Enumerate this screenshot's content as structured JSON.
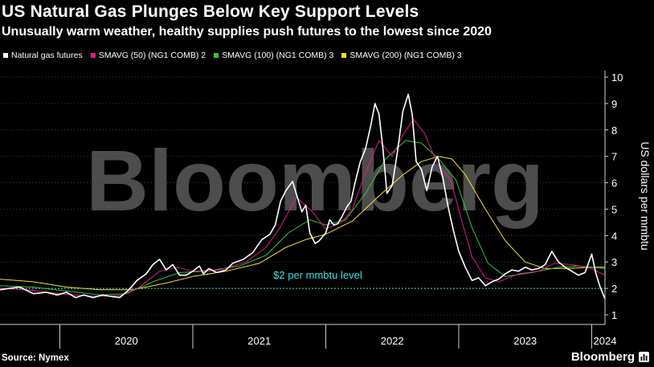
{
  "title": "US Natural Gas Plunges Below Key Support Levels",
  "subtitle": "Unusually warm weather, healthy supplies push futures to the lowest since 2020",
  "legend": [
    {
      "label": "Natural gas futures",
      "color": "#ffffff"
    },
    {
      "label": "SMAVG (50) (NG1 COMB) 2",
      "color": "#e8178a"
    },
    {
      "label": "SMAVG (100) (NG1 COMB) 3",
      "color": "#2fc63a"
    },
    {
      "label": "SMAVG (200) (NG1 COMB) 3",
      "color": "#f2e433"
    }
  ],
  "source": "Source: Nymex",
  "brand": "Bloomberg",
  "watermark": "Bloomberg",
  "chart_data": {
    "type": "line",
    "ylabel": "US dollars per mmbtu",
    "ylim": [
      1,
      10
    ],
    "yticks": [
      1,
      2,
      3,
      4,
      5,
      6,
      7,
      8,
      9,
      10
    ],
    "xticks": [
      {
        "label": "2020",
        "x": 2020.5
      },
      {
        "label": "2021",
        "x": 2021.5
      },
      {
        "label": "2022",
        "x": 2022.5
      },
      {
        "label": "2023",
        "x": 2023.5
      },
      {
        "label": "2024",
        "x": 2024.1
      }
    ],
    "year_boundaries": [
      2020.0,
      2021.0,
      2022.0,
      2023.0,
      2024.0
    ],
    "xlim": [
      2019.55,
      2024.1
    ],
    "annotation": {
      "text": "$2 per mmbtu level",
      "y": 2,
      "x": 2022.0,
      "color": "#3fe0e0"
    },
    "series": [
      {
        "name": "Natural gas futures",
        "color": "#ffffff",
        "points": [
          [
            2019.55,
            1.95
          ],
          [
            2019.62,
            2.0
          ],
          [
            2019.7,
            2.05
          ],
          [
            2019.8,
            1.8
          ],
          [
            2019.9,
            1.85
          ],
          [
            2019.98,
            1.75
          ],
          [
            2020.05,
            1.85
          ],
          [
            2020.12,
            1.65
          ],
          [
            2020.18,
            1.75
          ],
          [
            2020.25,
            1.65
          ],
          [
            2020.32,
            1.75
          ],
          [
            2020.38,
            1.7
          ],
          [
            2020.45,
            1.65
          ],
          [
            2020.52,
            1.95
          ],
          [
            2020.58,
            2.3
          ],
          [
            2020.65,
            2.55
          ],
          [
            2020.7,
            2.9
          ],
          [
            2020.75,
            3.1
          ],
          [
            2020.8,
            2.7
          ],
          [
            2020.85,
            2.9
          ],
          [
            2020.9,
            2.5
          ],
          [
            2020.95,
            2.5
          ],
          [
            2021.0,
            2.65
          ],
          [
            2021.05,
            2.85
          ],
          [
            2021.08,
            2.55
          ],
          [
            2021.12,
            2.75
          ],
          [
            2021.18,
            2.6
          ],
          [
            2021.25,
            2.7
          ],
          [
            2021.3,
            2.95
          ],
          [
            2021.38,
            3.1
          ],
          [
            2021.45,
            3.35
          ],
          [
            2021.52,
            3.85
          ],
          [
            2021.58,
            4.05
          ],
          [
            2021.62,
            4.4
          ],
          [
            2021.66,
            5.3
          ],
          [
            2021.7,
            5.7
          ],
          [
            2021.75,
            6.05
          ],
          [
            2021.78,
            5.55
          ],
          [
            2021.82,
            4.9
          ],
          [
            2021.85,
            5.15
          ],
          [
            2021.88,
            4.1
          ],
          [
            2021.92,
            3.7
          ],
          [
            2021.95,
            3.8
          ],
          [
            2022.0,
            4.1
          ],
          [
            2022.03,
            4.6
          ],
          [
            2022.06,
            4.4
          ],
          [
            2022.09,
            4.45
          ],
          [
            2022.12,
            4.7
          ],
          [
            2022.16,
            5.1
          ],
          [
            2022.19,
            5.3
          ],
          [
            2022.22,
            6.0
          ],
          [
            2022.26,
            6.8
          ],
          [
            2022.3,
            7.3
          ],
          [
            2022.34,
            8.2
          ],
          [
            2022.37,
            9.0
          ],
          [
            2022.4,
            8.6
          ],
          [
            2022.43,
            7.3
          ],
          [
            2022.46,
            5.6
          ],
          [
            2022.5,
            5.9
          ],
          [
            2022.54,
            7.2
          ],
          [
            2022.58,
            8.7
          ],
          [
            2022.62,
            9.35
          ],
          [
            2022.65,
            8.6
          ],
          [
            2022.68,
            6.8
          ],
          [
            2022.72,
            6.5
          ],
          [
            2022.76,
            5.7
          ],
          [
            2022.8,
            6.6
          ],
          [
            2022.84,
            7.0
          ],
          [
            2022.88,
            6.2
          ],
          [
            2022.92,
            5.1
          ],
          [
            2022.96,
            4.2
          ],
          [
            2023.0,
            3.4
          ],
          [
            2023.05,
            2.8
          ],
          [
            2023.1,
            2.3
          ],
          [
            2023.15,
            2.4
          ],
          [
            2023.2,
            2.1
          ],
          [
            2023.25,
            2.25
          ],
          [
            2023.3,
            2.35
          ],
          [
            2023.35,
            2.55
          ],
          [
            2023.4,
            2.7
          ],
          [
            2023.45,
            2.65
          ],
          [
            2023.5,
            2.8
          ],
          [
            2023.55,
            2.7
          ],
          [
            2023.6,
            2.75
          ],
          [
            2023.65,
            2.9
          ],
          [
            2023.7,
            3.4
          ],
          [
            2023.75,
            3.0
          ],
          [
            2023.8,
            2.8
          ],
          [
            2023.85,
            2.65
          ],
          [
            2023.9,
            2.5
          ],
          [
            2023.95,
            2.6
          ],
          [
            2024.0,
            3.3
          ],
          [
            2024.03,
            2.6
          ],
          [
            2024.06,
            2.1
          ],
          [
            2024.08,
            1.85
          ],
          [
            2024.1,
            1.6
          ]
        ]
      },
      {
        "name": "SMAVG (50) (NG1 COMB) 2",
        "color": "#e8178a",
        "points": [
          [
            2019.55,
            2.0
          ],
          [
            2019.75,
            1.95
          ],
          [
            2020.0,
            1.8
          ],
          [
            2020.25,
            1.7
          ],
          [
            2020.45,
            1.72
          ],
          [
            2020.6,
            2.05
          ],
          [
            2020.75,
            2.65
          ],
          [
            2020.88,
            2.8
          ],
          [
            2021.0,
            2.65
          ],
          [
            2021.2,
            2.7
          ],
          [
            2021.4,
            3.0
          ],
          [
            2021.55,
            3.55
          ],
          [
            2021.65,
            4.25
          ],
          [
            2021.78,
            5.45
          ],
          [
            2021.9,
            4.9
          ],
          [
            2022.0,
            4.25
          ],
          [
            2022.12,
            4.5
          ],
          [
            2022.2,
            5.0
          ],
          [
            2022.3,
            6.4
          ],
          [
            2022.4,
            7.6
          ],
          [
            2022.5,
            7.0
          ],
          [
            2022.58,
            7.8
          ],
          [
            2022.66,
            8.4
          ],
          [
            2022.74,
            7.9
          ],
          [
            2022.84,
            6.7
          ],
          [
            2022.94,
            6.1
          ],
          [
            2023.02,
            4.6
          ],
          [
            2023.1,
            3.2
          ],
          [
            2023.2,
            2.4
          ],
          [
            2023.3,
            2.25
          ],
          [
            2023.45,
            2.55
          ],
          [
            2023.6,
            2.65
          ],
          [
            2023.72,
            2.95
          ],
          [
            2023.85,
            2.9
          ],
          [
            2024.0,
            2.75
          ],
          [
            2024.1,
            2.5
          ]
        ]
      },
      {
        "name": "SMAVG (100) (NG1 COMB) 3",
        "color": "#2fc63a",
        "points": [
          [
            2019.55,
            2.1
          ],
          [
            2019.8,
            2.05
          ],
          [
            2020.05,
            1.9
          ],
          [
            2020.3,
            1.75
          ],
          [
            2020.5,
            1.8
          ],
          [
            2020.7,
            2.25
          ],
          [
            2020.9,
            2.6
          ],
          [
            2021.1,
            2.65
          ],
          [
            2021.35,
            2.85
          ],
          [
            2021.55,
            3.25
          ],
          [
            2021.72,
            4.1
          ],
          [
            2021.88,
            4.6
          ],
          [
            2022.0,
            4.4
          ],
          [
            2022.15,
            4.6
          ],
          [
            2022.3,
            5.6
          ],
          [
            2022.45,
            6.9
          ],
          [
            2022.6,
            7.6
          ],
          [
            2022.72,
            7.5
          ],
          [
            2022.85,
            6.9
          ],
          [
            2022.98,
            6.1
          ],
          [
            2023.1,
            4.3
          ],
          [
            2023.22,
            2.95
          ],
          [
            2023.35,
            2.45
          ],
          [
            2023.55,
            2.6
          ],
          [
            2023.75,
            2.8
          ],
          [
            2023.9,
            2.85
          ],
          [
            2024.1,
            2.75
          ]
        ]
      },
      {
        "name": "SMAVG (200) (NG1 COMB) 3",
        "color": "#f2e433",
        "points": [
          [
            2019.55,
            2.35
          ],
          [
            2019.8,
            2.25
          ],
          [
            2020.05,
            2.05
          ],
          [
            2020.3,
            1.95
          ],
          [
            2020.55,
            1.95
          ],
          [
            2020.8,
            2.2
          ],
          [
            2021.0,
            2.45
          ],
          [
            2021.25,
            2.65
          ],
          [
            2021.5,
            2.95
          ],
          [
            2021.7,
            3.55
          ],
          [
            2021.85,
            3.85
          ],
          [
            2022.0,
            4.05
          ],
          [
            2022.2,
            4.55
          ],
          [
            2022.4,
            5.5
          ],
          [
            2022.58,
            6.3
          ],
          [
            2022.72,
            6.8
          ],
          [
            2022.85,
            7.0
          ],
          [
            2022.95,
            6.9
          ],
          [
            2023.05,
            6.3
          ],
          [
            2023.2,
            5.0
          ],
          [
            2023.35,
            3.8
          ],
          [
            2023.5,
            3.0
          ],
          [
            2023.65,
            2.75
          ],
          [
            2023.8,
            2.75
          ],
          [
            2024.0,
            2.8
          ],
          [
            2024.1,
            2.8
          ]
        ]
      }
    ]
  }
}
